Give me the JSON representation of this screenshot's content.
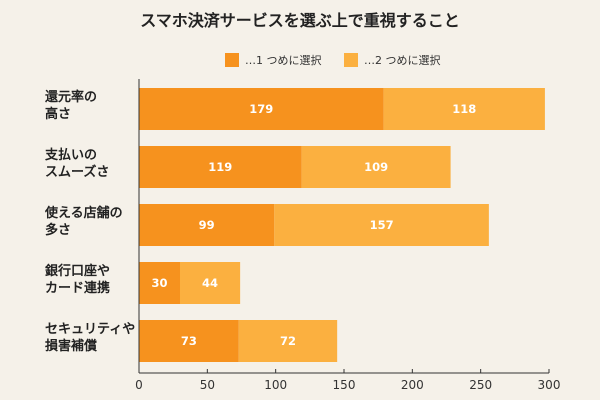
{
  "chart_data": {
    "type": "bar",
    "orientation": "horizontal",
    "stacked": true,
    "title": "スマホ決済サービスを選ぶ上で重視すること",
    "categories": [
      [
        "還元率の",
        "高さ"
      ],
      [
        "支払いの",
        "スムーズさ"
      ],
      [
        "使える店舗の",
        "多さ"
      ],
      [
        "銀行口座や",
        "カード連携"
      ],
      [
        "セキュリティや",
        "損害補償"
      ]
    ],
    "series": [
      {
        "name": "…1 つめに選択",
        "color": "#f6921e",
        "values": [
          179,
          119,
          99,
          30,
          73
        ]
      },
      {
        "name": "…2 つめに選択",
        "color": "#fbb040",
        "values": [
          118,
          109,
          157,
          44,
          72
        ]
      }
    ],
    "xlim": [
      0,
      300
    ],
    "xticks": [
      0,
      50,
      100,
      150,
      200,
      250,
      300
    ],
    "legend_position": "top-center",
    "grid": false
  }
}
